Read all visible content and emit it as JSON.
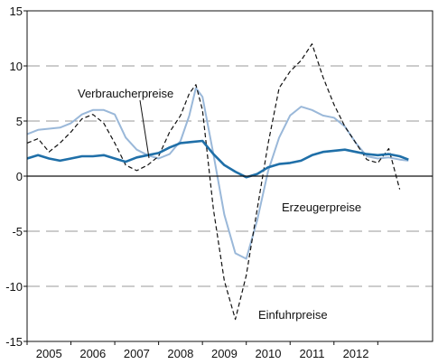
{
  "chart_data": {
    "type": "line",
    "title": "",
    "xlabel": "",
    "ylabel": "",
    "xlim": [
      2004.5,
      2013.75
    ],
    "ylim": [
      -15,
      15
    ],
    "grid": "horizontal dashed",
    "y_ticks": [
      "15",
      "10",
      "5",
      "0",
      "-5",
      "-10",
      "-15"
    ],
    "x_tick_labels": [
      "2005",
      "2006",
      "2007",
      "2008",
      "2009",
      "2010",
      "2011",
      "2012"
    ],
    "x_tick_positions": [
      2005,
      2006,
      2007,
      2008,
      2009,
      2010,
      2011,
      2012
    ],
    "annotations": {
      "verbraucher": "Verbraucherpreise",
      "erzeuger": "Erzeugerpreise",
      "einfuhr": "Einfuhrpreise"
    },
    "series": [
      {
        "key": "verbraucher",
        "color": "#1f6fa8",
        "style": "solid-thick",
        "x": [
          2004.5,
          2004.75,
          2005.0,
          2005.25,
          2005.5,
          2005.75,
          2006.0,
          2006.25,
          2006.5,
          2006.75,
          2007.0,
          2007.25,
          2007.5,
          2007.75,
          2008.0,
          2008.25,
          2008.5,
          2008.75,
          2009.0,
          2009.25,
          2009.5,
          2009.75,
          2010.0,
          2010.25,
          2010.5,
          2010.75,
          2011.0,
          2011.25,
          2011.5,
          2011.75,
          2012.0,
          2012.25,
          2012.5,
          2012.75,
          2013.0,
          2013.2
        ],
        "y": [
          1.6,
          1.9,
          1.6,
          1.4,
          1.6,
          1.8,
          1.8,
          1.9,
          1.6,
          1.3,
          1.7,
          1.9,
          2.1,
          2.6,
          3.0,
          3.1,
          3.2,
          2.0,
          1.0,
          0.4,
          -0.1,
          0.2,
          0.8,
          1.1,
          1.2,
          1.4,
          1.9,
          2.2,
          2.3,
          2.4,
          2.2,
          2.0,
          1.9,
          2.0,
          1.8,
          1.5
        ]
      },
      {
        "key": "erzeuger",
        "color": "#9ab8d9",
        "style": "solid",
        "x": [
          2004.5,
          2004.75,
          2005.0,
          2005.25,
          2005.5,
          2005.75,
          2006.0,
          2006.25,
          2006.5,
          2006.75,
          2007.0,
          2007.25,
          2007.5,
          2007.75,
          2008.0,
          2008.2,
          2008.35,
          2008.5,
          2008.75,
          2009.0,
          2009.25,
          2009.5,
          2009.75,
          2010.0,
          2010.25,
          2010.5,
          2010.75,
          2011.0,
          2011.25,
          2011.5,
          2011.75,
          2012.0,
          2012.25,
          2012.5,
          2012.75,
          2013.0,
          2013.2
        ],
        "y": [
          3.8,
          4.2,
          4.3,
          4.4,
          4.8,
          5.6,
          6.0,
          6.0,
          5.6,
          3.5,
          2.4,
          1.9,
          1.6,
          2.0,
          3.2,
          5.5,
          8.0,
          7.2,
          2.0,
          -3.5,
          -7.0,
          -7.5,
          -4.0,
          0.5,
          3.5,
          5.5,
          6.3,
          6.0,
          5.5,
          5.3,
          4.5,
          3.0,
          1.8,
          1.6,
          1.7,
          1.5,
          1.4
        ]
      },
      {
        "key": "einfuhr",
        "color": "#111111",
        "style": "dashed",
        "x": [
          2004.5,
          2004.75,
          2005.0,
          2005.25,
          2005.5,
          2005.75,
          2006.0,
          2006.25,
          2006.5,
          2006.75,
          2007.0,
          2007.25,
          2007.5,
          2007.75,
          2008.0,
          2008.2,
          2008.35,
          2008.5,
          2008.75,
          2009.0,
          2009.25,
          2009.5,
          2009.75,
          2010.0,
          2010.25,
          2010.5,
          2010.75,
          2011.0,
          2011.25,
          2011.5,
          2011.75,
          2012.0,
          2012.25,
          2012.5,
          2012.75,
          2013.0
        ],
        "y": [
          3.0,
          3.4,
          2.2,
          3.0,
          4.0,
          5.2,
          5.6,
          4.8,
          3.0,
          1.0,
          0.5,
          1.0,
          1.8,
          4.0,
          5.5,
          7.5,
          8.3,
          6.0,
          -3.0,
          -9.5,
          -13.0,
          -9.0,
          -3.0,
          3.0,
          8.0,
          9.5,
          10.5,
          12.0,
          9.0,
          6.5,
          4.5,
          3.0,
          1.5,
          1.2,
          2.5,
          -1.2
        ]
      }
    ]
  }
}
